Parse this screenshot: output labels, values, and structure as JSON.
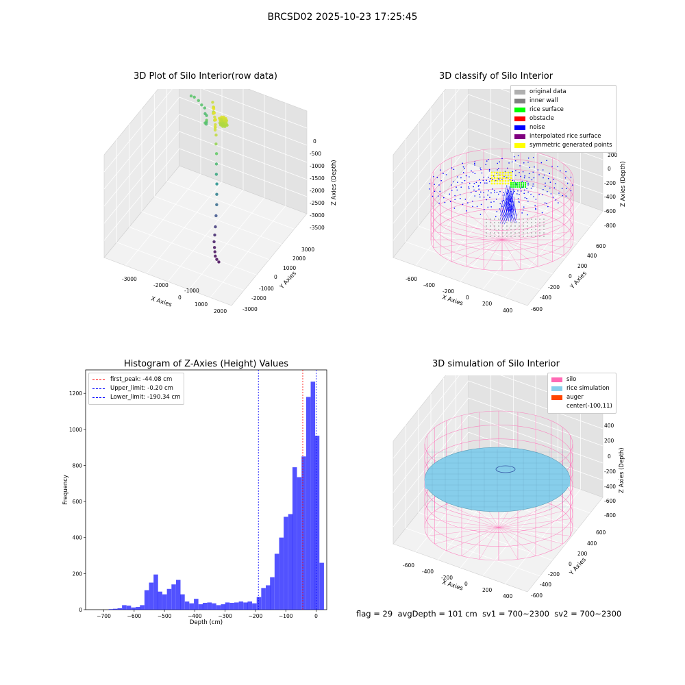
{
  "suptitle": "BRCSD02 2025-10-23 17:25:45",
  "chart_data": [
    {
      "type": "scatter",
      "title": "3D Plot of Silo Interior(row data)",
      "xlabel": "X Axies",
      "ylabel": "Y Axies",
      "zlabel": "Z Axies (Depth)",
      "x_ticks": [
        "-3000",
        "-2000",
        "-1000",
        "0",
        "1000",
        "2000"
      ],
      "y_ticks": [
        "3000",
        "2000",
        "1000",
        "0",
        "-1000",
        "-2000",
        "-3000"
      ],
      "z_ticks": [
        "0",
        "-500",
        "-1000",
        "-1500",
        "-2000",
        "-2500",
        "-3000",
        "-3500"
      ],
      "colormap": "viridis",
      "points": [
        {
          "x": -2950,
          "y": 3300,
          "z": -1000
        },
        {
          "x": -2800,
          "y": 3300,
          "z": -1000
        },
        {
          "x": -2550,
          "y": 3200,
          "z": -1000
        },
        {
          "x": -2350,
          "y": 3100,
          "z": -1050
        },
        {
          "x": -2150,
          "y": 3000,
          "z": -1050
        },
        {
          "x": -2050,
          "y": 2850,
          "z": -1150
        },
        {
          "x": -1900,
          "y": 2700,
          "z": -1100
        },
        {
          "x": -1800,
          "y": 2500,
          "z": -1200
        },
        {
          "x": -1700,
          "y": 2300,
          "z": -1150
        },
        {
          "x": -1650,
          "y": 2100,
          "z": -1000
        },
        {
          "x": -1550,
          "y": 2050,
          "z": -850
        },
        {
          "x": -1400,
          "y": 2300,
          "z": -300
        },
        {
          "x": -1300,
          "y": 2200,
          "z": -400
        },
        {
          "x": -1250,
          "y": 2100,
          "z": -500
        },
        {
          "x": -1200,
          "y": 2000,
          "z": -300
        },
        {
          "x": -1150,
          "y": 1900,
          "z": -200
        },
        {
          "x": -1050,
          "y": 1700,
          "z": -300
        },
        {
          "x": -1000,
          "y": 1650,
          "z": -100
        },
        {
          "x": -950,
          "y": 1600,
          "z": -200
        },
        {
          "x": -900,
          "y": 1500,
          "z": -150
        },
        {
          "x": -850,
          "y": 1450,
          "z": -250
        },
        {
          "x": -800,
          "y": 1350,
          "z": -300
        },
        {
          "x": -700,
          "y": 1250,
          "z": -200
        },
        {
          "x": -650,
          "y": 1150,
          "z": -150
        },
        {
          "x": -600,
          "y": 1050,
          "z": -250
        },
        {
          "x": -550,
          "y": 950,
          "z": -300
        },
        {
          "x": -500,
          "y": 850,
          "z": -200
        },
        {
          "x": -450,
          "y": 750,
          "z": -250
        },
        {
          "x": -350,
          "y": 650,
          "z": -350
        },
        {
          "x": -300,
          "y": 550,
          "z": -600
        },
        {
          "x": -250,
          "y": 500,
          "z": -900
        },
        {
          "x": -200,
          "y": 400,
          "z": -1200
        },
        {
          "x": -150,
          "y": 300,
          "z": -1500
        },
        {
          "x": -100,
          "y": 250,
          "z": -1800
        },
        {
          "x": -50,
          "y": 150,
          "z": -2100
        },
        {
          "x": 0,
          "y": 50,
          "z": -2400
        },
        {
          "x": 50,
          "y": -100,
          "z": -2700
        },
        {
          "x": 100,
          "y": -250,
          "z": -3000
        },
        {
          "x": 150,
          "y": -400,
          "z": -3200
        },
        {
          "x": 200,
          "y": -550,
          "z": -3350
        },
        {
          "x": 300,
          "y": -700,
          "z": -3450
        },
        {
          "x": 400,
          "y": -850,
          "z": -3500
        },
        {
          "x": 500,
          "y": -1000,
          "z": -3550
        },
        {
          "x": 650,
          "y": -1150,
          "z": -3550
        },
        {
          "x": 800,
          "y": -1250,
          "z": -3550
        }
      ]
    },
    {
      "type": "scatter",
      "title": "3D classify of Silo Interior",
      "xlabel": "X Axies",
      "ylabel": "Y Axies",
      "zlabel": "Z Axies (Depth)",
      "x_ticks": [
        "-600",
        "-400",
        "-200",
        "0",
        "200",
        "400"
      ],
      "y_ticks": [
        "600",
        "400",
        "200",
        "0",
        "-200",
        "-400",
        "-600"
      ],
      "z_ticks": [
        "200",
        "0",
        "-200",
        "-400",
        "-600",
        "-800"
      ],
      "legend": [
        {
          "label": "original data",
          "color": "#b0b0b0"
        },
        {
          "label": "inner wall",
          "color": "#808080"
        },
        {
          "label": "rice surface",
          "color": "#00ff00"
        },
        {
          "label": "obstacle",
          "color": "#ff0000"
        },
        {
          "label": "noise",
          "color": "#0000ff"
        },
        {
          "label": "interpolated rice surface",
          "color": "#800080"
        },
        {
          "label": "symmetric generated points",
          "color": "#ffff00"
        }
      ]
    },
    {
      "type": "bar",
      "title": "Histogram of Z-Axies (Height) Values",
      "xlabel": "Depth (cm)",
      "ylabel": "Frequency",
      "xlim": [
        -760,
        35
      ],
      "ylim": [
        0,
        1330
      ],
      "x_ticks": [
        -700,
        -600,
        -500,
        -400,
        -300,
        -200,
        -100,
        0
      ],
      "y_ticks": [
        0,
        200,
        400,
        600,
        800,
        1000,
        1200
      ],
      "bin_width": 14.8,
      "bins": [
        {
          "x": -714,
          "count": 0
        },
        {
          "x": -699,
          "count": 0
        },
        {
          "x": -684,
          "count": 3
        },
        {
          "x": -670,
          "count": 5
        },
        {
          "x": -655,
          "count": 8
        },
        {
          "x": -640,
          "count": 25
        },
        {
          "x": -625,
          "count": 22
        },
        {
          "x": -610,
          "count": 12
        },
        {
          "x": -595,
          "count": 15
        },
        {
          "x": -581,
          "count": 25
        },
        {
          "x": -566,
          "count": 108
        },
        {
          "x": -551,
          "count": 150
        },
        {
          "x": -536,
          "count": 195
        },
        {
          "x": -522,
          "count": 100
        },
        {
          "x": -507,
          "count": 85
        },
        {
          "x": -492,
          "count": 115
        },
        {
          "x": -477,
          "count": 140
        },
        {
          "x": -462,
          "count": 165
        },
        {
          "x": -448,
          "count": 85
        },
        {
          "x": -433,
          "count": 45
        },
        {
          "x": -418,
          "count": 35
        },
        {
          "x": -403,
          "count": 60
        },
        {
          "x": -388,
          "count": 30
        },
        {
          "x": -374,
          "count": 38
        },
        {
          "x": -359,
          "count": 40
        },
        {
          "x": -344,
          "count": 35
        },
        {
          "x": -329,
          "count": 25
        },
        {
          "x": -314,
          "count": 30
        },
        {
          "x": -300,
          "count": 40
        },
        {
          "x": -285,
          "count": 38
        },
        {
          "x": -270,
          "count": 40
        },
        {
          "x": -255,
          "count": 45
        },
        {
          "x": -240,
          "count": 40
        },
        {
          "x": -226,
          "count": 45
        },
        {
          "x": -211,
          "count": 35
        },
        {
          "x": -196,
          "count": 70
        },
        {
          "x": -181,
          "count": 120
        },
        {
          "x": -166,
          "count": 135
        },
        {
          "x": -152,
          "count": 180
        },
        {
          "x": -137,
          "count": 310
        },
        {
          "x": -122,
          "count": 400
        },
        {
          "x": -107,
          "count": 515
        },
        {
          "x": -92,
          "count": 530
        },
        {
          "x": -78,
          "count": 790
        },
        {
          "x": -63,
          "count": 735
        },
        {
          "x": -48,
          "count": 850
        },
        {
          "x": -33,
          "count": 1180
        },
        {
          "x": -18,
          "count": 1265
        },
        {
          "x": -4,
          "count": 965
        },
        {
          "x": 11,
          "count": 260
        }
      ],
      "lines": [
        {
          "label": "first_peak: -44.08 cm",
          "value": -44.08,
          "color": "#ff0000"
        },
        {
          "label": "Upper_limit: -0.20 cm",
          "value": -0.2,
          "color": "#0000ff"
        },
        {
          "label": "Lower_limit: -190.34 cm",
          "value": -190.34,
          "color": "#0000ff"
        }
      ]
    },
    {
      "type": "area",
      "title": "3D simulation of Silo Interior",
      "xlabel": "X Axies",
      "ylabel": "Y Axies",
      "zlabel": "Z Axies (Depth)",
      "x_ticks": [
        "-600",
        "-400",
        "-200",
        "0",
        "200",
        "400"
      ],
      "y_ticks": [
        "600",
        "400",
        "200",
        "0",
        "-200",
        "-400",
        "-600"
      ],
      "z_ticks": [
        "400",
        "200",
        "0",
        "-200",
        "-400",
        "-600",
        "-800"
      ],
      "legend": [
        {
          "label": "silo",
          "color": "#ff69b4"
        },
        {
          "label": "rice simulation",
          "color": "#87ceeb"
        },
        {
          "label": "auger",
          "color": "#ff4500"
        },
        {
          "label": "center(-100,11)",
          "color": ""
        }
      ]
    }
  ],
  "footer": {
    "flag": "flag = 29",
    "avg": "avgDepth = 101 cm",
    "sv1": "sv1 = 700~2300",
    "sv2": "sv2 = 700~2300"
  }
}
